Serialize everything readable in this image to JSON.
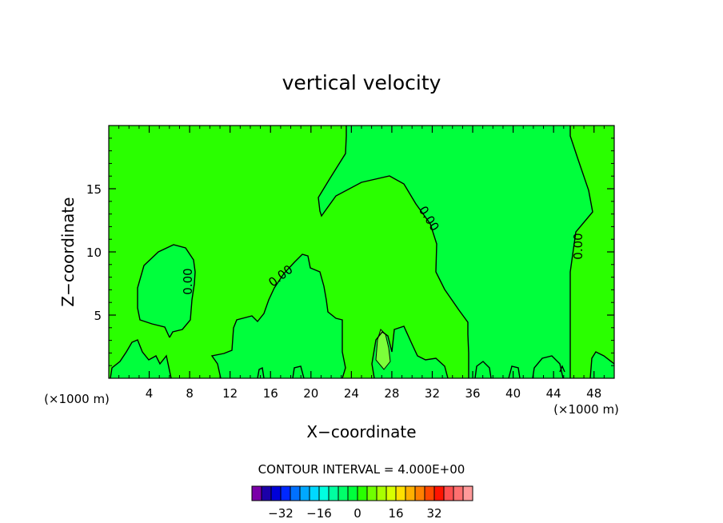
{
  "chart_data": {
    "type": "heatmap",
    "title": "vertical velocity",
    "xlabel": "X−coordinate",
    "ylabel": "Z−coordinate",
    "x_units_left": "(×1000 m)",
    "x_units_right": "(×1000 m)",
    "xlim": [
      0,
      50
    ],
    "ylim": [
      0,
      20
    ],
    "x_ticks": [
      4,
      8,
      12,
      16,
      20,
      24,
      28,
      32,
      36,
      40,
      44,
      48
    ],
    "x_tick_labels": [
      "4",
      "8",
      "12",
      "16",
      "20",
      "24",
      "28",
      "32",
      "36",
      "40",
      "44",
      "48"
    ],
    "y_ticks": [
      5,
      10,
      15
    ],
    "y_tick_labels": [
      "5",
      "10",
      "15"
    ],
    "contour_label": "0.00",
    "contour_interval_text": "CONTOUR INTERVAL = 4.000E+00",
    "colors": {
      "positive_region": "#2aff00",
      "near_zero_region": "#00ff3c",
      "high_region": "#7cff3a",
      "contour": "#000000"
    },
    "colorbar": {
      "colors": [
        "#7a00a8",
        "#1c00a8",
        "#0000d8",
        "#0028ff",
        "#0070ff",
        "#00a8ff",
        "#00d8ff",
        "#00ffe0",
        "#00ffa0",
        "#00ff6a",
        "#00ff3c",
        "#2aff00",
        "#70ff00",
        "#a8ff00",
        "#d8ff00",
        "#ffe000",
        "#ffb000",
        "#ff8000",
        "#ff4800",
        "#ff1400",
        "#ff5050",
        "#ff7070",
        "#ff9a9a"
      ],
      "tick_values": [
        -32,
        -16,
        0,
        16,
        32
      ],
      "tick_labels": [
        "−32",
        "−16",
        "0",
        "16",
        "32"
      ]
    }
  }
}
